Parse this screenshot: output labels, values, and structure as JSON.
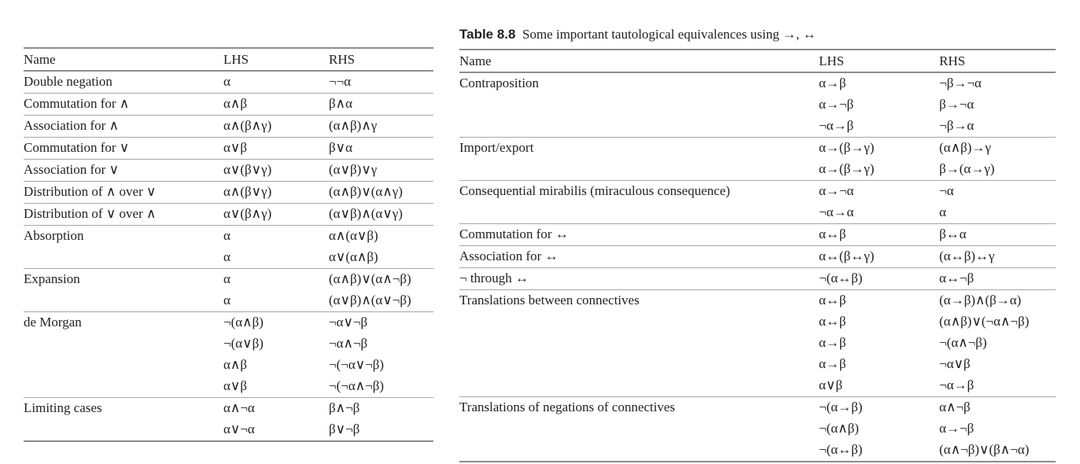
{
  "table1": {
    "headers": {
      "name": "Name",
      "lhs": "LHS",
      "rhs": "RHS"
    },
    "groups": [
      {
        "name": "Double negation",
        "rows": [
          [
            "α",
            "¬¬α"
          ]
        ]
      },
      {
        "name": "Commutation for ∧",
        "rows": [
          [
            "α∧β",
            "β∧α"
          ]
        ]
      },
      {
        "name": "Association for ∧",
        "rows": [
          [
            "α∧(β∧γ)",
            "(α∧β)∧γ"
          ]
        ]
      },
      {
        "name": "Commutation for ∨",
        "rows": [
          [
            "α∨β",
            "β∨α"
          ]
        ]
      },
      {
        "name": "Association for ∨",
        "rows": [
          [
            "α∨(β∨γ)",
            "(α∨β)∨γ"
          ]
        ]
      },
      {
        "name": "Distribution of ∧ over ∨",
        "rows": [
          [
            "α∧(β∨γ)",
            "(α∧β)∨(α∧γ)"
          ]
        ]
      },
      {
        "name": "Distribution of ∨ over ∧",
        "rows": [
          [
            "α∨(β∧γ)",
            "(α∨β)∧(α∨γ)"
          ]
        ]
      },
      {
        "name": "Absorption",
        "rows": [
          [
            "α",
            "α∧(α∨β)"
          ],
          [
            "α",
            "α∨(α∧β)"
          ]
        ]
      },
      {
        "name": "Expansion",
        "rows": [
          [
            "α",
            "(α∧β)∨(α∧¬β)"
          ],
          [
            "α",
            "(α∨β)∧(α∨¬β)"
          ]
        ]
      },
      {
        "name": "de Morgan",
        "rows": [
          [
            "¬(α∧β)",
            "¬α∨¬β"
          ],
          [
            "¬(α∨β)",
            "¬α∧¬β"
          ],
          [
            "α∧β",
            "¬(¬α∨¬β)"
          ],
          [
            "α∨β",
            "¬(¬α∧¬β)"
          ]
        ]
      },
      {
        "name": "Limiting cases",
        "rows": [
          [
            "α∧¬α",
            "β∧¬β"
          ],
          [
            "α∨¬α",
            "β∨¬β"
          ]
        ]
      }
    ]
  },
  "table2": {
    "caption_label": "Table 8.8",
    "caption_text": "Some important tautological equivalences using →, ↔",
    "headers": {
      "name": "Name",
      "lhs": "LHS",
      "rhs": "RHS"
    },
    "groups": [
      {
        "name": "Contraposition",
        "rows": [
          [
            "α→β",
            "¬β→¬α"
          ],
          [
            "α→¬β",
            "β→¬α"
          ],
          [
            "¬α→β",
            "¬β→α"
          ]
        ]
      },
      {
        "name": "Import/export",
        "rows": [
          [
            "α→(β→γ)",
            "(α∧β)→γ"
          ],
          [
            "α→(β→γ)",
            "β→(α→γ)"
          ]
        ]
      },
      {
        "name": "Consequential mirabilis (miraculous consequence)",
        "rows": [
          [
            "α→¬α",
            "¬α"
          ],
          [
            "¬α→α",
            "α"
          ]
        ]
      },
      {
        "name": "Commutation for ↔",
        "rows": [
          [
            "α↔β",
            "β↔α"
          ]
        ]
      },
      {
        "name": "Association for ↔",
        "rows": [
          [
            "α↔(β↔γ)",
            "(α↔β)↔γ"
          ]
        ]
      },
      {
        "name": "¬ through ↔",
        "rows": [
          [
            "¬(α↔β)",
            "α↔¬β"
          ]
        ]
      },
      {
        "name": "Translations between connectives",
        "rows": [
          [
            "α↔β",
            "(α→β)∧(β→α)"
          ],
          [
            "α↔β",
            "(α∧β)∨(¬α∧¬β)"
          ],
          [
            "α→β",
            "¬(α∧¬β)"
          ],
          [
            "α→β",
            "¬α∨β"
          ],
          [
            "α∨β",
            "¬α→β"
          ]
        ]
      },
      {
        "name": "Translations of negations of connectives",
        "rows": [
          [
            "¬(α→β)",
            "α∧¬β"
          ],
          [
            "¬(α∧β)",
            "α→¬β"
          ],
          [
            "¬(α↔β)",
            "(α∧¬β)∨(β∧¬α)"
          ]
        ]
      }
    ]
  }
}
